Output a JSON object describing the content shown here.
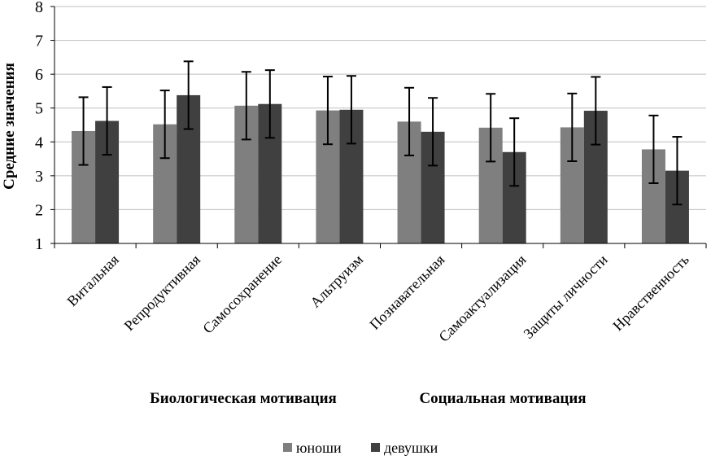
{
  "chart_data": {
    "type": "bar",
    "ylabel": "Средние значения",
    "ylim": [
      1,
      8
    ],
    "yticks": [
      1,
      2,
      3,
      4,
      5,
      6,
      7,
      8
    ],
    "grid": true,
    "legend_position": "bottom-center",
    "categories": [
      "Витальная",
      "Репродуктивная",
      "Самосохранение",
      "Альтруизм",
      "Познавательная",
      "Самоактуализация",
      "Защиты личности",
      "Нравственность"
    ],
    "groups": [
      {
        "label": "Биологическая мотивация",
        "categories": [
          "Витальная",
          "Репродуктивная",
          "Самосохранение",
          "Альтруизм"
        ]
      },
      {
        "label": "Социальная мотивация",
        "categories": [
          "Познавательная",
          "Самоактуализация",
          "Защиты личности",
          "Нравственность"
        ]
      }
    ],
    "series": [
      {
        "name": "юноши",
        "color": "#7f7f7f",
        "values": [
          4.32,
          4.52,
          5.07,
          4.93,
          4.6,
          4.42,
          4.43,
          3.78
        ],
        "error": [
          1.0,
          1.0,
          1.0,
          1.0,
          1.0,
          1.0,
          1.0,
          1.0
        ]
      },
      {
        "name": "девушки",
        "color": "#404040",
        "values": [
          4.62,
          5.38,
          5.12,
          4.95,
          4.3,
          3.7,
          4.92,
          3.15
        ],
        "error": [
          1.0,
          1.0,
          1.0,
          1.0,
          1.0,
          1.0,
          1.0,
          1.0
        ]
      }
    ]
  }
}
